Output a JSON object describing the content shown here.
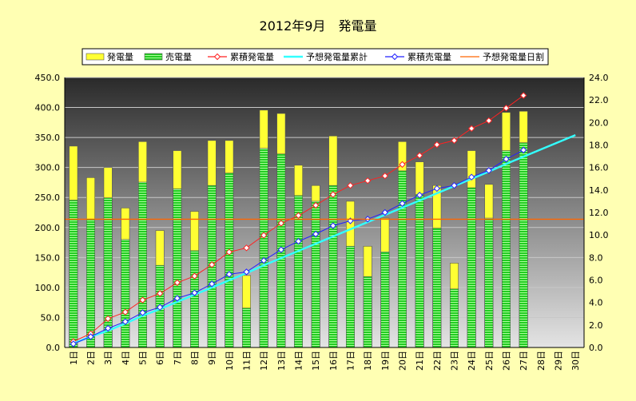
{
  "chart_data": {
    "type": "bar",
    "title": "2012年9月　発電量",
    "categories": [
      "1日",
      "2日",
      "3日",
      "4日",
      "5日",
      "6日",
      "7日",
      "8日",
      "9日",
      "10日",
      "11日",
      "12日",
      "13日",
      "14日",
      "15日",
      "16日",
      "17日",
      "18日",
      "19日",
      "20日",
      "21日",
      "22日",
      "23日",
      "24日",
      "25日",
      "26日",
      "27日",
      "28日",
      "29日",
      "30日"
    ],
    "y_left": {
      "min": 0,
      "max": 450,
      "step": 50,
      "ticks": [
        "0.0",
        "50.0",
        "100.0",
        "150.0",
        "200.0",
        "250.0",
        "300.0",
        "350.0",
        "400.0",
        "450.0"
      ]
    },
    "y_right": {
      "min": 0,
      "max": 24,
      "step": 2,
      "ticks": [
        "0.0",
        "2.0",
        "4.0",
        "6.0",
        "8.0",
        "10.0",
        "12.0",
        "14.0",
        "16.0",
        "18.0",
        "20.0",
        "22.0",
        "24.0"
      ]
    },
    "grid": true,
    "legend_position": "top",
    "series": [
      {
        "name": "発電量",
        "kind": "bar",
        "axis": "right",
        "color": "#ffff33",
        "values": [
          17.9,
          15.1,
          16.0,
          12.4,
          18.3,
          10.4,
          17.5,
          12.1,
          18.4,
          18.4,
          6.4,
          21.1,
          20.8,
          16.2,
          14.4,
          18.8,
          13.0,
          9.0,
          11.5,
          18.3,
          16.5,
          14.4,
          7.5,
          17.5,
          14.5,
          20.9,
          21.0,
          null,
          null,
          null
        ]
      },
      {
        "name": "売電量",
        "kind": "bar",
        "axis": "right",
        "color": "#33dd33",
        "values": [
          13.1,
          11.4,
          13.3,
          9.6,
          14.7,
          7.3,
          14.1,
          8.6,
          14.4,
          15.5,
          3.5,
          17.7,
          17.2,
          13.5,
          13.0,
          14.4,
          9.0,
          6.3,
          8.5,
          15.7,
          13.6,
          10.6,
          5.2,
          14.2,
          11.5,
          17.5,
          18.2,
          null,
          null,
          null
        ]
      },
      {
        "name": "累積発電量",
        "kind": "line",
        "axis": "left",
        "color": "#ff2222",
        "values": [
          10,
          23,
          48,
          59,
          79,
          90,
          108,
          119,
          138,
          159,
          166,
          187,
          207,
          220,
          237,
          255,
          270,
          278,
          286,
          305,
          320,
          338,
          345,
          365,
          378,
          399,
          420,
          null,
          null,
          null
        ]
      },
      {
        "name": "予想発電量累計",
        "kind": "line",
        "axis": "left",
        "color": "#33ffff",
        "values": [
          7,
          18,
          28,
          40,
          53,
          64,
          76,
          88,
          100,
          112,
          124,
          137,
          149,
          161,
          173,
          185,
          197,
          209,
          221,
          233,
          245,
          257,
          269,
          281,
          293,
          306,
          318,
          330,
          342,
          354
        ]
      },
      {
        "name": "累積売電量",
        "kind": "line",
        "axis": "left",
        "color": "#2222ff",
        "values": [
          6,
          18,
          32,
          43,
          58,
          67,
          82,
          91,
          106,
          122,
          126,
          145,
          163,
          177,
          189,
          203,
          211,
          214,
          225,
          240,
          254,
          265,
          270,
          284,
          295,
          314,
          329,
          null,
          null,
          null
        ]
      },
      {
        "name": "予想発電量日割",
        "kind": "line",
        "axis": "right",
        "color": "#ff6600",
        "values": [
          11.4,
          11.4,
          11.4,
          11.4,
          11.4,
          11.4,
          11.4,
          11.4,
          11.4,
          11.4,
          11.4,
          11.4,
          11.4,
          11.4,
          11.4,
          11.4,
          11.4,
          11.4,
          11.4,
          11.4,
          11.4,
          11.4,
          11.4,
          11.4,
          11.4,
          11.4,
          11.4,
          11.4,
          11.4,
          11.4
        ]
      }
    ]
  }
}
